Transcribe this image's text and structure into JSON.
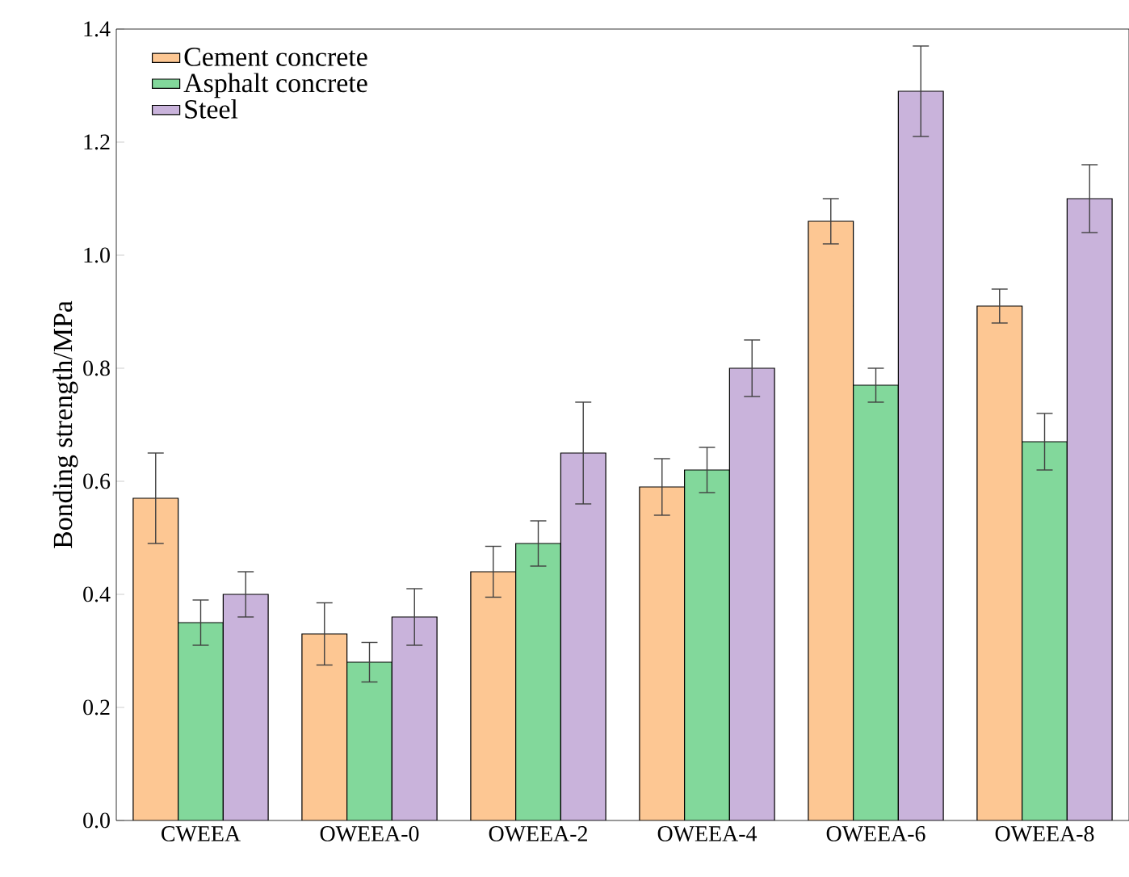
{
  "chart_data": {
    "type": "bar",
    "ylabel": "Bonding strength/MPa",
    "categories": [
      "CWEEA",
      "OWEEA-0",
      "OWEEA-2",
      "OWEEA-4",
      "OWEEA-6",
      "OWEEA-8"
    ],
    "series": [
      {
        "name": "Cement concrete",
        "color": "#fdc793",
        "values": [
          0.57,
          0.33,
          0.44,
          0.59,
          1.06,
          0.91
        ],
        "errors": [
          0.08,
          0.055,
          0.045,
          0.05,
          0.04,
          0.03
        ]
      },
      {
        "name": "Asphalt concrete",
        "color": "#82d89b",
        "values": [
          0.35,
          0.28,
          0.49,
          0.62,
          0.77,
          0.67
        ],
        "errors": [
          0.04,
          0.035,
          0.04,
          0.04,
          0.03,
          0.05
        ]
      },
      {
        "name": "Steel",
        "color": "#c9b3db",
        "values": [
          0.4,
          0.36,
          0.65,
          0.8,
          1.29,
          1.1
        ],
        "errors": [
          0.04,
          0.05,
          0.09,
          0.05,
          0.08,
          0.06
        ]
      }
    ],
    "ylim": [
      0,
      1.4
    ],
    "yticks": [
      {
        "value": 0,
        "label": "0.0"
      },
      {
        "value": 0.2,
        "label": "0.2"
      },
      {
        "value": 0.4,
        "label": "0.4"
      },
      {
        "value": 0.6,
        "label": "0.6"
      },
      {
        "value": 0.8,
        "label": "0.8"
      },
      {
        "value": 1.0,
        "label": "1.0"
      },
      {
        "value": 1.2,
        "label": "1.2"
      },
      {
        "value": 1.4,
        "label": "1.4"
      }
    ],
    "legend": "top left",
    "grid": false
  }
}
